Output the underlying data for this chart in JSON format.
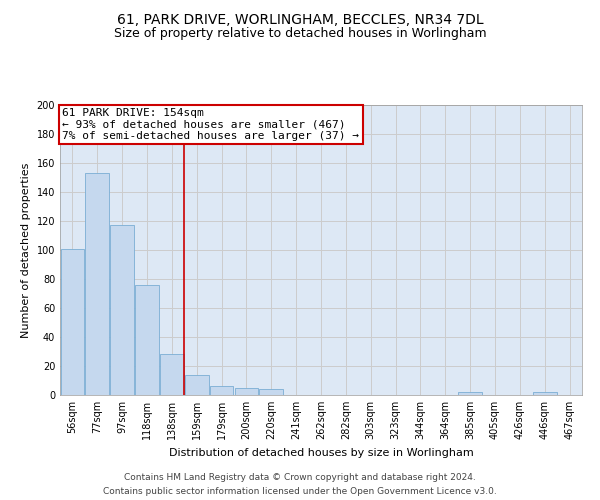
{
  "title_line1": "61, PARK DRIVE, WORLINGHAM, BECCLES, NR34 7DL",
  "title_line2": "Size of property relative to detached houses in Worlingham",
  "xlabel": "Distribution of detached houses by size in Worlingham",
  "ylabel": "Number of detached properties",
  "categories": [
    "56sqm",
    "77sqm",
    "97sqm",
    "118sqm",
    "138sqm",
    "159sqm",
    "179sqm",
    "200sqm",
    "220sqm",
    "241sqm",
    "262sqm",
    "282sqm",
    "303sqm",
    "323sqm",
    "344sqm",
    "364sqm",
    "385sqm",
    "405sqm",
    "426sqm",
    "446sqm",
    "467sqm"
  ],
  "values": [
    101,
    153,
    117,
    76,
    28,
    14,
    6,
    5,
    4,
    0,
    0,
    0,
    0,
    0,
    0,
    0,
    2,
    0,
    0,
    2,
    0
  ],
  "bar_color": "#c5d8ee",
  "bar_edge_color": "#7aadd4",
  "vline_color": "#cc0000",
  "annotation_text": "61 PARK DRIVE: 154sqm\n← 93% of detached houses are smaller (467)\n7% of semi-detached houses are larger (37) →",
  "annotation_box_color": "#cc0000",
  "annotation_box_facecolor": "white",
  "ylim": [
    0,
    200
  ],
  "yticks": [
    0,
    20,
    40,
    60,
    80,
    100,
    120,
    140,
    160,
    180,
    200
  ],
  "grid_color": "#cccccc",
  "bg_color": "#dde8f5",
  "footer_line1": "Contains HM Land Registry data © Crown copyright and database right 2024.",
  "footer_line2": "Contains public sector information licensed under the Open Government Licence v3.0.",
  "title_fontsize": 10,
  "subtitle_fontsize": 9,
  "axis_label_fontsize": 8,
  "tick_fontsize": 7,
  "annotation_fontsize": 8,
  "footer_fontsize": 6.5
}
